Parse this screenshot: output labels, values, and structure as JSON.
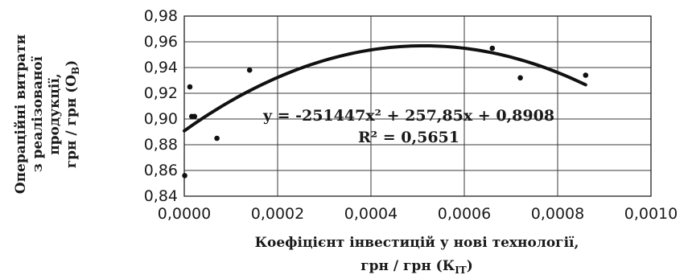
{
  "chart_data": {
    "type": "scatter",
    "title": "",
    "xlabel": [
      "Коефіцієнт інвестицій у нові технології,",
      "грн / грн (К",
      "ІТ",
      ")"
    ],
    "ylabel": [
      "Операційні витрати",
      "з реалізованої",
      "продукції,",
      "грн / грн (О",
      "В",
      ")"
    ],
    "xlim": [
      0,
      0.001
    ],
    "ylim": [
      0.84,
      0.98
    ],
    "x_ticks": [
      0,
      0.0002,
      0.0004,
      0.0006,
      0.0008,
      0.001
    ],
    "x_tick_labels": [
      "0,0000",
      "0,0002",
      "0,0004",
      "0,0006",
      "0,0008",
      "0,0010"
    ],
    "y_ticks": [
      0.84,
      0.86,
      0.88,
      0.9,
      0.92,
      0.94,
      0.96,
      0.98
    ],
    "y_tick_labels": [
      "0,84",
      "0,86",
      "0,88",
      "0,90",
      "0,92",
      "0,94",
      "0,96",
      "0,98"
    ],
    "grid": true,
    "series": [
      {
        "x": [
          1e-06,
          1.2e-05,
          1.6e-05,
          2.2e-05,
          7e-05,
          0.00014,
          0.00066,
          0.00072,
          0.00086
        ],
        "y": [
          0.856,
          0.925,
          0.902,
          0.902,
          0.885,
          0.938,
          0.955,
          0.932,
          0.934
        ]
      }
    ],
    "trendline": {
      "type": "polynomial",
      "coefficients": {
        "a": -251447,
        "b": 257.85,
        "c": 0.8908
      },
      "x_range": [
        0,
        0.00086
      ]
    },
    "annotations": {
      "equation": "y = -251447x² + 257,85x + 0,8908",
      "r_squared": "R² = 0,5651"
    }
  }
}
